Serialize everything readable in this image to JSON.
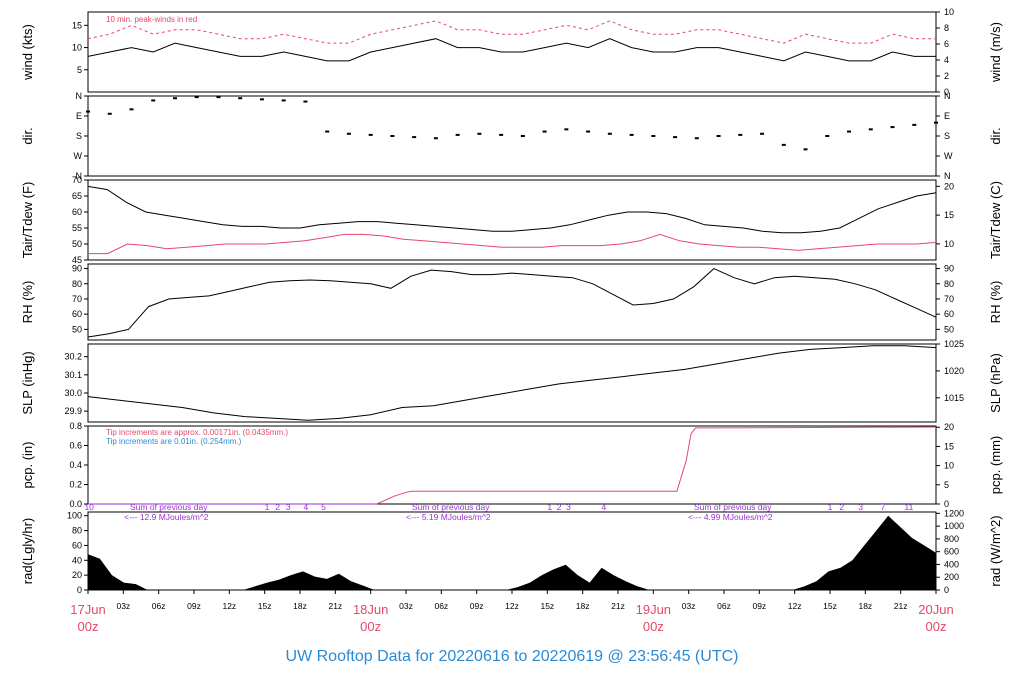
{
  "title": "UW Rooftop Data for 20220616  to  20220619 @ 23:56:45  (UTC)",
  "colors": {
    "red": "#e8476a",
    "blue": "#2a8ad4",
    "purple": "#9b30d9",
    "black": "#000000"
  },
  "time_axis": {
    "hour_ticks": [
      "03z",
      "06z",
      "09z",
      "12z",
      "15z",
      "18z",
      "21z",
      "03z",
      "06z",
      "09z",
      "12z",
      "15z",
      "18z",
      "21z",
      "03z",
      "06z",
      "09z",
      "12z",
      "15z",
      "18z",
      "21z"
    ],
    "date_labels": [
      {
        "day": "17Jun",
        "hour": "00z"
      },
      {
        "day": "18Jun",
        "hour": "00z"
      },
      {
        "day": "19Jun",
        "hour": "00z"
      },
      {
        "day": "20Jun",
        "hour": "00z"
      }
    ]
  },
  "chart_data": [
    {
      "type": "line",
      "id": "wind",
      "ylabel": "wind (kts)",
      "ylabel_right": "wind (m/s)",
      "yticks": [
        "5",
        "10",
        "15"
      ],
      "yticks_right": [
        "0",
        "2",
        "4",
        "6",
        "8",
        "10"
      ],
      "annotation": "10 min. peak-winds in red",
      "series": [
        {
          "color": "#000000",
          "values": [
            8,
            9,
            10,
            9,
            11,
            10,
            9,
            8,
            8,
            9,
            8,
            7,
            7,
            9,
            10,
            11,
            12,
            10,
            10,
            9,
            9,
            10,
            11,
            10,
            12,
            10,
            9,
            9,
            10,
            10,
            9,
            8,
            7,
            9,
            8,
            7,
            7,
            9,
            8,
            8
          ]
        },
        {
          "color": "#e8476a",
          "values": [
            12,
            13,
            15,
            13,
            14,
            14,
            13,
            12,
            12,
            13,
            12,
            11,
            11,
            13,
            14,
            15,
            16,
            14,
            14,
            13,
            13,
            14,
            15,
            14,
            16,
            14,
            13,
            13,
            14,
            14,
            13,
            12,
            11,
            13,
            12,
            11,
            11,
            13,
            12,
            12
          ]
        }
      ]
    },
    {
      "type": "scatter",
      "id": "dir",
      "ylabel": "dir.",
      "ylabel_right": "dir.",
      "yticks": [
        "N",
        "E",
        "S",
        "W",
        "N"
      ],
      "values_deg": [
        290,
        280,
        300,
        340,
        350,
        355,
        355,
        350,
        345,
        340,
        335,
        200,
        190,
        185,
        180,
        175,
        170,
        185,
        190,
        185,
        180,
        200,
        210,
        200,
        190,
        185,
        180,
        175,
        170,
        180,
        185,
        190,
        140,
        120,
        180,
        200,
        210,
        220,
        230,
        240
      ]
    },
    {
      "type": "line",
      "id": "temp",
      "ylabel": "Tair/Tdew (F)",
      "ylabel_right": "Tair/Tdew (C)",
      "yticks": [
        "45",
        "50",
        "55",
        "60",
        "65",
        "70"
      ],
      "yticks_right": [
        "10",
        "15",
        "20"
      ],
      "series": [
        {
          "name": "Tair",
          "color": "#000000",
          "values": [
            68,
            67,
            63,
            60,
            59,
            58,
            57,
            56,
            55.5,
            55.5,
            55,
            55,
            56,
            56.5,
            57,
            57,
            56.5,
            56,
            55.5,
            55,
            54.5,
            54,
            54,
            54.5,
            55,
            56,
            57.5,
            59,
            60,
            60,
            59.5,
            58,
            56,
            55.5,
            55,
            54,
            53.5,
            53.5,
            54,
            55,
            58,
            61,
            63,
            65,
            66
          ]
        },
        {
          "name": "Tdew",
          "color": "#e8476a",
          "values": [
            47,
            47,
            50,
            49.5,
            48.5,
            49,
            49.5,
            50,
            50,
            50,
            50.5,
            51,
            52,
            53,
            53,
            52.5,
            51.5,
            51,
            50.5,
            50,
            49.5,
            49,
            49,
            49,
            49.5,
            49.5,
            49.5,
            50,
            51,
            53,
            51,
            50,
            49.5,
            49,
            49,
            48.5,
            48,
            48.5,
            49,
            49.5,
            50,
            50,
            50,
            50.5
          ]
        }
      ]
    },
    {
      "type": "line",
      "id": "rh",
      "ylabel": "RH (%)",
      "ylabel_right": "RH (%)",
      "yticks": [
        "50",
        "60",
        "70",
        "80",
        "90"
      ],
      "series": [
        {
          "color": "#000000",
          "values": [
            45,
            47,
            50,
            65,
            70,
            71,
            72,
            75,
            78,
            81,
            82,
            82.5,
            82,
            81,
            80,
            77,
            85,
            89,
            88,
            86,
            86,
            87,
            86,
            85,
            84,
            80,
            73,
            66,
            67,
            70,
            78,
            90,
            84,
            80,
            84,
            85,
            84,
            83,
            80,
            76,
            70,
            64,
            58
          ]
        }
      ]
    },
    {
      "type": "line",
      "id": "slp",
      "ylabel": "SLP (inHg)",
      "ylabel_right": "SLP (hPa)",
      "yticks": [
        "29.9",
        "30.0",
        "30.1",
        "30.2"
      ],
      "yticks_right": [
        "1015",
        "1020",
        "1025"
      ],
      "series": [
        {
          "color": "#000000",
          "values": [
            29.98,
            29.96,
            29.94,
            29.92,
            29.89,
            29.87,
            29.86,
            29.85,
            29.86,
            29.88,
            29.92,
            29.93,
            29.96,
            29.99,
            30.02,
            30.05,
            30.07,
            30.09,
            30.11,
            30.13,
            30.16,
            30.19,
            30.22,
            30.24,
            30.25,
            30.26,
            30.26,
            30.25
          ]
        }
      ]
    },
    {
      "type": "line",
      "id": "pcp",
      "ylabel": "pcp. (in)",
      "ylabel_right": "pcp. (mm)",
      "yticks": [
        "0.0",
        "0.2",
        "0.4",
        "0.6",
        "0.8"
      ],
      "yticks_right": [
        "0",
        "5",
        "10",
        "15",
        "20"
      ],
      "note_red": "Tip increments are approx. 0.00171in. (0.0435mm.)",
      "note_blue": "Tip increments are 0.01in. (0.254mm.)",
      "series": [
        {
          "color": "#9b30d9",
          "x": [
            0,
            24.5
          ],
          "values": [
            0,
            0
          ]
        },
        {
          "color": "#e8476a",
          "x": [
            24.5,
            26,
            27,
            27.5,
            50,
            50.8,
            51.2,
            51.6,
            53,
            72
          ],
          "values": [
            0,
            0.08,
            0.12,
            0.13,
            0.13,
            0.45,
            0.72,
            0.78,
            0.78,
            0.79
          ]
        }
      ]
    },
    {
      "type": "area",
      "id": "rad",
      "ylabel": "rad(Lgly/hr)",
      "ylabel_right": "rad (W/m^2)",
      "yticks": [
        "0",
        "20",
        "40",
        "60",
        "80",
        "100"
      ],
      "yticks_right": [
        "0",
        "200",
        "400",
        "600",
        "800",
        "1000",
        "1200"
      ],
      "annotations": [
        {
          "text": "Sum of previous day",
          "sub": "<--- 12.9 MJoules/m^2"
        },
        {
          "text": "Sum of previous day",
          "sub": "<--- 5.19 MJoules/m^2"
        },
        {
          "text": "Sum of previous day",
          "sub": "<--- 4.99 MJoules/m^2"
        }
      ],
      "hour_markers": [
        "10",
        "1",
        "2",
        "3",
        "4",
        "5",
        "1",
        "2",
        "3",
        "4",
        "1",
        "2",
        "3",
        "7",
        "11"
      ],
      "values": [
        48,
        42,
        20,
        10,
        8,
        0,
        0,
        0,
        0,
        0,
        0,
        0,
        0,
        0,
        5,
        10,
        14,
        20,
        25,
        18,
        15,
        22,
        12,
        6,
        0,
        0,
        0,
        0,
        0,
        0,
        0,
        0,
        0,
        0,
        0,
        0,
        4,
        10,
        20,
        28,
        34,
        20,
        10,
        30,
        20,
        12,
        5,
        0,
        0,
        0,
        0,
        0,
        0,
        0,
        0,
        0,
        0,
        0,
        0,
        0,
        5,
        12,
        25,
        30,
        40,
        60,
        80,
        100,
        85,
        70,
        60,
        50
      ]
    }
  ]
}
